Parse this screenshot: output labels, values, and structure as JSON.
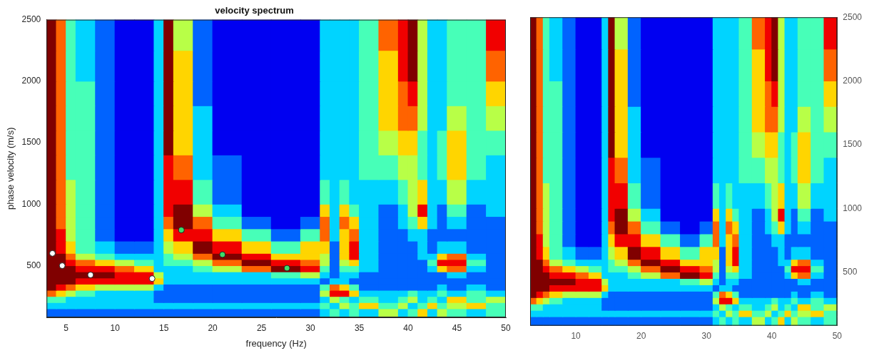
{
  "chart_data": [
    {
      "type": "heatmap",
      "title": "velocity spectrum",
      "x_label": "frequency (Hz)",
      "y_label": "phase velocity (m/s)",
      "xlim": [
        3,
        50
      ],
      "xticks": [
        5,
        10,
        15,
        20,
        25,
        30,
        35,
        40,
        45,
        50
      ],
      "ylim": [
        80,
        2500
      ],
      "yticks": [
        500,
        1000,
        1500,
        2000,
        2500
      ],
      "grid": false,
      "x_bins": [
        3,
        4,
        5,
        6,
        8,
        10,
        12,
        14,
        15,
        16,
        18,
        20,
        23,
        26,
        29,
        31,
        32,
        33,
        34,
        35,
        37,
        39,
        40,
        41,
        42,
        43,
        44,
        46,
        48,
        50
      ],
      "y_bins": [
        80,
        150,
        200,
        250,
        300,
        350,
        400,
        450,
        500,
        550,
        600,
        700,
        800,
        900,
        1000,
        1200,
        1400,
        1600,
        1800,
        2000,
        2250,
        2500
      ],
      "cell_range": [
        0,
        9
      ],
      "cells": [
        [
          2,
          2,
          2,
          2,
          2,
          2,
          2,
          2,
          2,
          2,
          2,
          2,
          2,
          2,
          2,
          3,
          4,
          3,
          4,
          3,
          5,
          3,
          4,
          6,
          3,
          5,
          4,
          3,
          4
        ],
        [
          3,
          3,
          3,
          3,
          3,
          3,
          3,
          3,
          3,
          3,
          3,
          3,
          3,
          3,
          3,
          4,
          3,
          5,
          4,
          6,
          4,
          5,
          3,
          4,
          6,
          4,
          5,
          6,
          4
        ],
        [
          4,
          4,
          3,
          3,
          3,
          3,
          3,
          2,
          2,
          2,
          2,
          2,
          2,
          2,
          2,
          3,
          5,
          4,
          3,
          4,
          3,
          4,
          5,
          3,
          4,
          3,
          6,
          4,
          5
        ],
        [
          7,
          6,
          5,
          4,
          3,
          3,
          3,
          2,
          2,
          2,
          2,
          2,
          2,
          2,
          2,
          5,
          8,
          8,
          6,
          3,
          3,
          3,
          4,
          3,
          3,
          4,
          3,
          4,
          3
        ],
        [
          9,
          8,
          7,
          6,
          5,
          5,
          5,
          3,
          2,
          2,
          2,
          2,
          2,
          2,
          2,
          4,
          7,
          6,
          4,
          2,
          2,
          2,
          2,
          2,
          2,
          3,
          2,
          3,
          2
        ],
        [
          9,
          9,
          9,
          8,
          8,
          8,
          8,
          6,
          3,
          3,
          3,
          3,
          3,
          3,
          3,
          2,
          3,
          3,
          2,
          2,
          2,
          2,
          2,
          2,
          2,
          2,
          2,
          2,
          2
        ],
        [
          9,
          9,
          9,
          9,
          9,
          8,
          8,
          5,
          3,
          3,
          3,
          3,
          3,
          4,
          5,
          3,
          2,
          3,
          3,
          2,
          2,
          2,
          2,
          2,
          2,
          2,
          3,
          2,
          2
        ],
        [
          9,
          9,
          9,
          8,
          8,
          7,
          6,
          3,
          3,
          3,
          4,
          5,
          7,
          9,
          8,
          4,
          2,
          4,
          4,
          3,
          2,
          2,
          2,
          2,
          3,
          6,
          7,
          3,
          2
        ],
        [
          9,
          9,
          8,
          7,
          6,
          5,
          4,
          3,
          4,
          4,
          5,
          7,
          9,
          8,
          7,
          5,
          2,
          5,
          6,
          3,
          2,
          2,
          2,
          2,
          4,
          8,
          8,
          4,
          2
        ],
        [
          9,
          9,
          7,
          5,
          4,
          3,
          3,
          3,
          4,
          5,
          7,
          9,
          8,
          6,
          6,
          5,
          2,
          6,
          8,
          3,
          2,
          2,
          2,
          3,
          3,
          6,
          7,
          3,
          2
        ],
        [
          9,
          8,
          6,
          4,
          3,
          2,
          2,
          3,
          5,
          6,
          9,
          8,
          6,
          4,
          6,
          6,
          2,
          6,
          8,
          3,
          2,
          2,
          2,
          3,
          2,
          3,
          3,
          2,
          2
        ],
        [
          9,
          8,
          5,
          4,
          2,
          1,
          1,
          3,
          6,
          8,
          8,
          6,
          4,
          2,
          4,
          7,
          3,
          6,
          7,
          3,
          2,
          2,
          3,
          3,
          2,
          2,
          2,
          2,
          2
        ],
        [
          9,
          7,
          5,
          4,
          2,
          1,
          1,
          3,
          7,
          9,
          7,
          4,
          2,
          1,
          2,
          7,
          3,
          7,
          6,
          3,
          2,
          3,
          4,
          6,
          3,
          2,
          3,
          2,
          2
        ],
        [
          9,
          7,
          5,
          4,
          2,
          1,
          1,
          3,
          8,
          9,
          5,
          3,
          1,
          1,
          1,
          6,
          3,
          6,
          4,
          3,
          2,
          3,
          5,
          8,
          3,
          2,
          4,
          2,
          3
        ],
        [
          9,
          7,
          5,
          4,
          2,
          1,
          1,
          3,
          8,
          8,
          4,
          2,
          1,
          1,
          1,
          4,
          3,
          4,
          3,
          3,
          3,
          4,
          5,
          6,
          3,
          3,
          5,
          3,
          3
        ],
        [
          9,
          7,
          4,
          4,
          2,
          1,
          1,
          3,
          8,
          7,
          3,
          2,
          1,
          1,
          1,
          3,
          3,
          3,
          3,
          4,
          4,
          5,
          5,
          4,
          3,
          4,
          6,
          4,
          3
        ],
        [
          9,
          7,
          4,
          4,
          2,
          1,
          1,
          3,
          9,
          6,
          3,
          1,
          1,
          1,
          1,
          3,
          3,
          3,
          3,
          4,
          5,
          6,
          6,
          4,
          3,
          4,
          6,
          4,
          4
        ],
        [
          9,
          7,
          4,
          4,
          2,
          1,
          1,
          3,
          9,
          6,
          3,
          1,
          1,
          1,
          1,
          3,
          3,
          3,
          3,
          4,
          6,
          7,
          7,
          5,
          3,
          3,
          5,
          4,
          5
        ],
        [
          9,
          7,
          4,
          4,
          2,
          1,
          1,
          3,
          9,
          6,
          2,
          1,
          1,
          1,
          1,
          3,
          3,
          3,
          3,
          4,
          6,
          7,
          8,
          5,
          3,
          3,
          4,
          4,
          6
        ],
        [
          9,
          7,
          4,
          3,
          2,
          1,
          1,
          3,
          9,
          6,
          2,
          1,
          1,
          1,
          1,
          3,
          3,
          3,
          3,
          4,
          6,
          8,
          9,
          5,
          3,
          3,
          4,
          4,
          7
        ],
        [
          9,
          7,
          4,
          3,
          2,
          1,
          1,
          3,
          9,
          5,
          2,
          1,
          1,
          1,
          1,
          3,
          3,
          3,
          3,
          4,
          7,
          8,
          9,
          5,
          3,
          3,
          4,
          4,
          8
        ]
      ],
      "series": [
        {
          "color": "#ffffff",
          "marker": "circle",
          "x": [
            3.6,
            4.6,
            7.5,
            13.8
          ],
          "values": [
            600,
            500,
            425,
            395
          ]
        },
        {
          "color": "#3ddc6a",
          "marker": "circle",
          "x": [
            16.8,
            21,
            27.6
          ],
          "values": [
            790,
            590,
            480
          ]
        }
      ]
    },
    {
      "type": "surface",
      "xlim": [
        3,
        50
      ],
      "xticks": [
        10,
        20,
        30,
        40,
        50
      ],
      "ylim": [
        80,
        2500
      ],
      "yticks": [
        500,
        1000,
        1500,
        2000,
        2500
      ],
      "grid": false
    }
  ]
}
